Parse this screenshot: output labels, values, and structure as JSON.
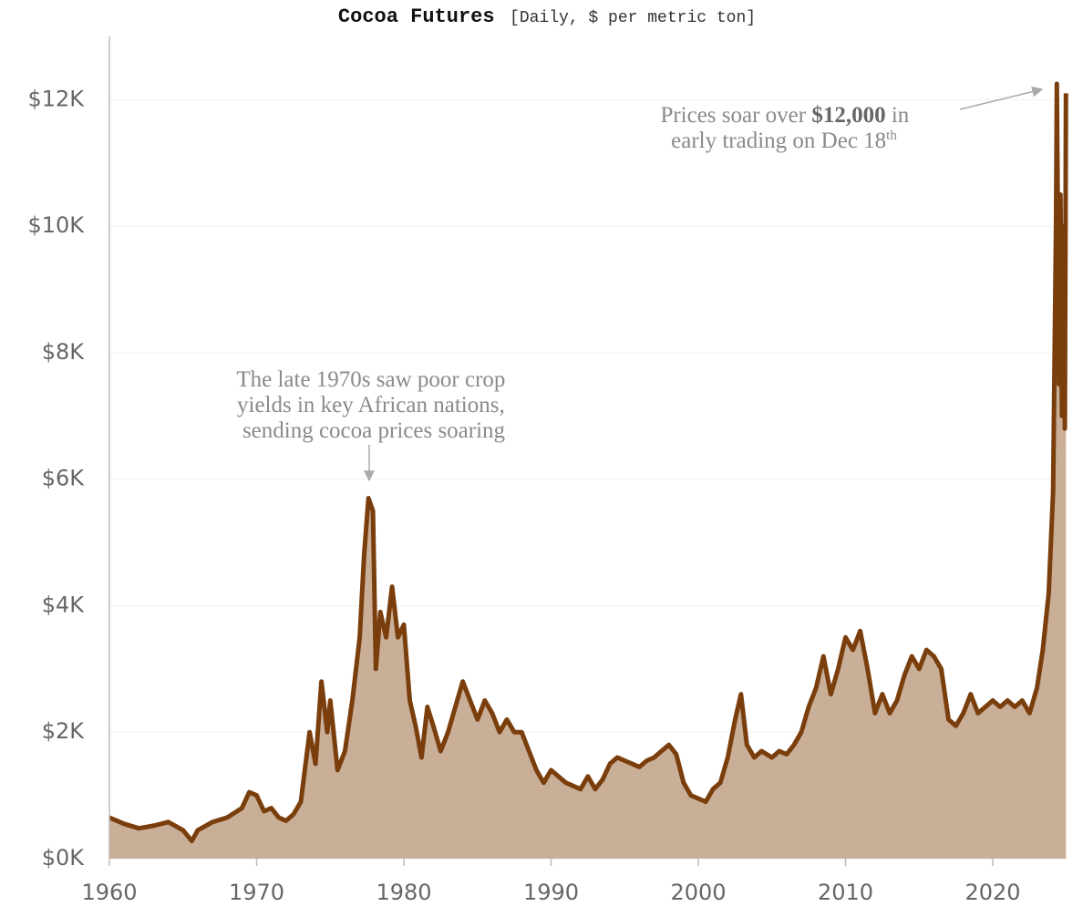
{
  "chart_data": {
    "type": "area",
    "title": "Cocoa Futures",
    "subtitle": "[Daily, $ per metric ton]",
    "annotations": [
      {
        "lines": [
          "The late 1970s saw poor crop",
          "yields in key African nations,",
          "sending cocoa prices soaring"
        ]
      },
      {
        "lines": [
          [
            "Prices soar over ",
            "$12,000",
            " in"
          ],
          [
            "early trading on Dec 18",
            "th"
          ]
        ]
      }
    ],
    "color": "#7a3e0c",
    "fill_color": "#c9ae98",
    "grid": true,
    "xlim": [
      1960,
      2025
    ],
    "ylim": [
      0,
      13000
    ],
    "xticks": [
      1960,
      1970,
      1980,
      1990,
      2000,
      2010,
      2020
    ],
    "yticks": [
      {
        "value": 0,
        "label": "$0K"
      },
      {
        "value": 2000,
        "label": "$2K"
      },
      {
        "value": 4000,
        "label": "$4K"
      },
      {
        "value": 6000,
        "label": "$6K"
      },
      {
        "value": 8000,
        "label": "$8K"
      },
      {
        "value": 10000,
        "label": "$10K"
      },
      {
        "value": 12000,
        "label": "$12K"
      }
    ],
    "x": [
      1960,
      1961,
      1962,
      1963,
      1964,
      1965,
      1965.6,
      1966,
      1967,
      1968,
      1969,
      1969.5,
      1970,
      1970.5,
      1971,
      1971.5,
      1972,
      1972.5,
      1973,
      1973.6,
      1974,
      1974.4,
      1974.8,
      1975,
      1975.5,
      1976,
      1976.5,
      1977,
      1977.3,
      1977.6,
      1977.9,
      1978.1,
      1978.4,
      1978.8,
      1979.2,
      1979.6,
      1980,
      1980.4,
      1980.8,
      1981.2,
      1981.6,
      1982,
      1982.5,
      1983,
      1983.5,
      1984,
      1984.5,
      1985,
      1985.5,
      1986,
      1986.5,
      1987,
      1987.5,
      1988,
      1988.5,
      1989,
      1989.5,
      1990,
      1990.5,
      1991,
      1991.5,
      1992,
      1992.5,
      1993,
      1993.5,
      1994,
      1994.5,
      1995,
      1995.5,
      1996,
      1996.5,
      1997,
      1997.5,
      1998,
      1998.5,
      1999,
      1999.5,
      2000,
      2000.5,
      2001,
      2001.5,
      2002,
      2002.5,
      2002.9,
      2003.3,
      2003.8,
      2004.3,
      2005,
      2005.5,
      2006,
      2006.5,
      2007,
      2007.5,
      2008,
      2008.5,
      2009,
      2009.5,
      2010,
      2010.5,
      2011,
      2011.5,
      2012,
      2012.5,
      2013,
      2013.5,
      2014,
      2014.5,
      2015,
      2015.5,
      2016,
      2016.5,
      2017,
      2017.5,
      2018,
      2018.5,
      2019,
      2019.5,
      2020,
      2020.5,
      2021,
      2021.5,
      2022,
      2022.5,
      2023,
      2023.4,
      2023.8,
      2024.1,
      2024.3,
      2024.35,
      2024.5,
      2024.6,
      2024.7,
      2024.8,
      2024.9,
      2024.97
    ],
    "values": [
      650,
      550,
      480,
      520,
      580,
      450,
      280,
      450,
      580,
      650,
      800,
      1050,
      1000,
      750,
      800,
      650,
      600,
      700,
      900,
      2000,
      1500,
      2800,
      2000,
      2500,
      1400,
      1700,
      2500,
      3500,
      4800,
      5700,
      5500,
      3000,
      3900,
      3500,
      4300,
      3500,
      3700,
      2500,
      2100,
      1600,
      2400,
      2100,
      1700,
      2000,
      2400,
      2800,
      2500,
      2200,
      2500,
      2300,
      2000,
      2200,
      2000,
      2000,
      1700,
      1400,
      1200,
      1400,
      1300,
      1200,
      1150,
      1100,
      1300,
      1100,
      1250,
      1500,
      1600,
      1550,
      1500,
      1450,
      1550,
      1600,
      1700,
      1800,
      1650,
      1200,
      1000,
      950,
      900,
      1100,
      1200,
      1600,
      2200,
      2600,
      1800,
      1600,
      1700,
      1600,
      1700,
      1650,
      1800,
      2000,
      2400,
      2700,
      3200,
      2600,
      3000,
      3500,
      3300,
      3600,
      3000,
      2300,
      2600,
      2300,
      2500,
      2900,
      3200,
      3000,
      3300,
      3200,
      3000,
      2200,
      2100,
      2300,
      2600,
      2300,
      2400,
      2500,
      2400,
      2500,
      2400,
      2500,
      2300,
      2700,
      3300,
      4200,
      5800,
      10000,
      12250,
      7500,
      10500,
      7000,
      10000,
      6800,
      12100
    ]
  }
}
